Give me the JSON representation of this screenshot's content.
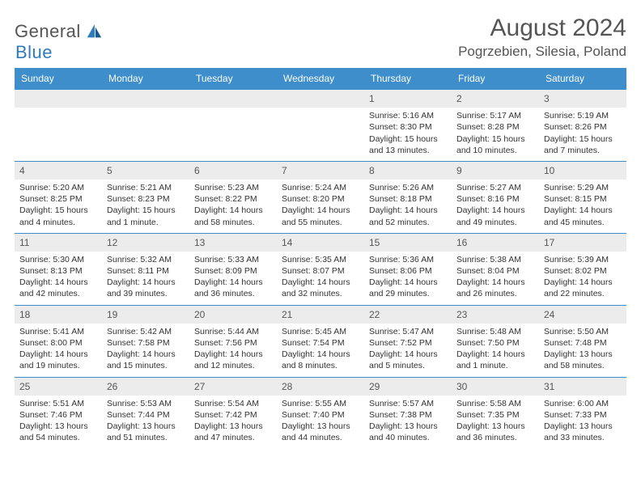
{
  "colors": {
    "header_bg": "#3d8ecb",
    "header_text": "#ffffff",
    "daynum_bg": "#ececec",
    "text": "#333333",
    "title": "#555555",
    "border": "#3d8ecb"
  },
  "logo": {
    "part1": "General",
    "part2": "Blue"
  },
  "title": "August 2024",
  "location": "Pogrzebien, Silesia, Poland",
  "weekdays": [
    "Sunday",
    "Monday",
    "Tuesday",
    "Wednesday",
    "Thursday",
    "Friday",
    "Saturday"
  ],
  "weeks": [
    [
      null,
      null,
      null,
      null,
      {
        "d": "1",
        "sunrise": "5:16 AM",
        "sunset": "8:30 PM",
        "daylight": "15 hours and 13 minutes."
      },
      {
        "d": "2",
        "sunrise": "5:17 AM",
        "sunset": "8:28 PM",
        "daylight": "15 hours and 10 minutes."
      },
      {
        "d": "3",
        "sunrise": "5:19 AM",
        "sunset": "8:26 PM",
        "daylight": "15 hours and 7 minutes."
      }
    ],
    [
      {
        "d": "4",
        "sunrise": "5:20 AM",
        "sunset": "8:25 PM",
        "daylight": "15 hours and 4 minutes."
      },
      {
        "d": "5",
        "sunrise": "5:21 AM",
        "sunset": "8:23 PM",
        "daylight": "15 hours and 1 minute."
      },
      {
        "d": "6",
        "sunrise": "5:23 AM",
        "sunset": "8:22 PM",
        "daylight": "14 hours and 58 minutes."
      },
      {
        "d": "7",
        "sunrise": "5:24 AM",
        "sunset": "8:20 PM",
        "daylight": "14 hours and 55 minutes."
      },
      {
        "d": "8",
        "sunrise": "5:26 AM",
        "sunset": "8:18 PM",
        "daylight": "14 hours and 52 minutes."
      },
      {
        "d": "9",
        "sunrise": "5:27 AM",
        "sunset": "8:16 PM",
        "daylight": "14 hours and 49 minutes."
      },
      {
        "d": "10",
        "sunrise": "5:29 AM",
        "sunset": "8:15 PM",
        "daylight": "14 hours and 45 minutes."
      }
    ],
    [
      {
        "d": "11",
        "sunrise": "5:30 AM",
        "sunset": "8:13 PM",
        "daylight": "14 hours and 42 minutes."
      },
      {
        "d": "12",
        "sunrise": "5:32 AM",
        "sunset": "8:11 PM",
        "daylight": "14 hours and 39 minutes."
      },
      {
        "d": "13",
        "sunrise": "5:33 AM",
        "sunset": "8:09 PM",
        "daylight": "14 hours and 36 minutes."
      },
      {
        "d": "14",
        "sunrise": "5:35 AM",
        "sunset": "8:07 PM",
        "daylight": "14 hours and 32 minutes."
      },
      {
        "d": "15",
        "sunrise": "5:36 AM",
        "sunset": "8:06 PM",
        "daylight": "14 hours and 29 minutes."
      },
      {
        "d": "16",
        "sunrise": "5:38 AM",
        "sunset": "8:04 PM",
        "daylight": "14 hours and 26 minutes."
      },
      {
        "d": "17",
        "sunrise": "5:39 AM",
        "sunset": "8:02 PM",
        "daylight": "14 hours and 22 minutes."
      }
    ],
    [
      {
        "d": "18",
        "sunrise": "5:41 AM",
        "sunset": "8:00 PM",
        "daylight": "14 hours and 19 minutes."
      },
      {
        "d": "19",
        "sunrise": "5:42 AM",
        "sunset": "7:58 PM",
        "daylight": "14 hours and 15 minutes."
      },
      {
        "d": "20",
        "sunrise": "5:44 AM",
        "sunset": "7:56 PM",
        "daylight": "14 hours and 12 minutes."
      },
      {
        "d": "21",
        "sunrise": "5:45 AM",
        "sunset": "7:54 PM",
        "daylight": "14 hours and 8 minutes."
      },
      {
        "d": "22",
        "sunrise": "5:47 AM",
        "sunset": "7:52 PM",
        "daylight": "14 hours and 5 minutes."
      },
      {
        "d": "23",
        "sunrise": "5:48 AM",
        "sunset": "7:50 PM",
        "daylight": "14 hours and 1 minute."
      },
      {
        "d": "24",
        "sunrise": "5:50 AM",
        "sunset": "7:48 PM",
        "daylight": "13 hours and 58 minutes."
      }
    ],
    [
      {
        "d": "25",
        "sunrise": "5:51 AM",
        "sunset": "7:46 PM",
        "daylight": "13 hours and 54 minutes."
      },
      {
        "d": "26",
        "sunrise": "5:53 AM",
        "sunset": "7:44 PM",
        "daylight": "13 hours and 51 minutes."
      },
      {
        "d": "27",
        "sunrise": "5:54 AM",
        "sunset": "7:42 PM",
        "daylight": "13 hours and 47 minutes."
      },
      {
        "d": "28",
        "sunrise": "5:55 AM",
        "sunset": "7:40 PM",
        "daylight": "13 hours and 44 minutes."
      },
      {
        "d": "29",
        "sunrise": "5:57 AM",
        "sunset": "7:38 PM",
        "daylight": "13 hours and 40 minutes."
      },
      {
        "d": "30",
        "sunrise": "5:58 AM",
        "sunset": "7:35 PM",
        "daylight": "13 hours and 36 minutes."
      },
      {
        "d": "31",
        "sunrise": "6:00 AM",
        "sunset": "7:33 PM",
        "daylight": "13 hours and 33 minutes."
      }
    ]
  ],
  "labels": {
    "sunrise": "Sunrise:",
    "sunset": "Sunset:",
    "daylight": "Daylight:"
  }
}
